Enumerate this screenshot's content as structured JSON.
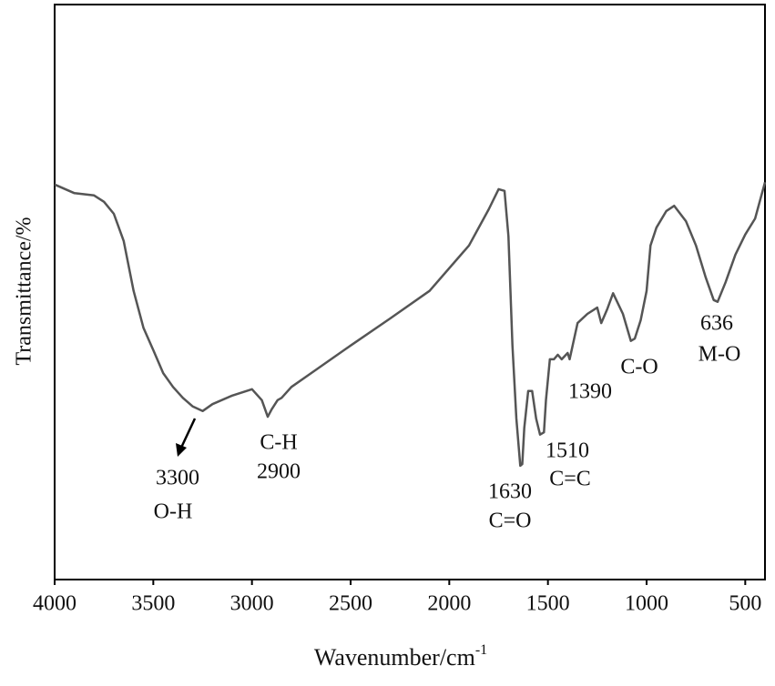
{
  "chart_data": {
    "type": "line",
    "xlabel": "Wavenumber/cm",
    "xlabel_sup": "-1",
    "ylabel": "Transmittance/%",
    "x": [
      4000,
      3900,
      3800,
      3750,
      3700,
      3650,
      3600,
      3550,
      3500,
      3450,
      3400,
      3350,
      3300,
      3250,
      3200,
      3100,
      3000,
      2950,
      2920,
      2900,
      2870,
      2850,
      2800,
      2700,
      2500,
      2300,
      2100,
      1900,
      1800,
      1750,
      1720,
      1700,
      1680,
      1660,
      1640,
      1630,
      1620,
      1600,
      1580,
      1560,
      1540,
      1520,
      1510,
      1490,
      1470,
      1450,
      1430,
      1400,
      1390,
      1350,
      1300,
      1250,
      1230,
      1200,
      1170,
      1120,
      1080,
      1060,
      1030,
      1000,
      980,
      950,
      900,
      860,
      800,
      750,
      700,
      660,
      640,
      600,
      550,
      500,
      450,
      400
    ],
    "values": [
      68.7,
      67.2,
      66.8,
      65.7,
      63.6,
      58.9,
      50.2,
      43.8,
      39.9,
      35.9,
      33.5,
      31.6,
      30.1,
      29.3,
      30.5,
      32.0,
      33.1,
      31.2,
      28.3,
      29.6,
      31.2,
      31.6,
      33.5,
      35.9,
      40.7,
      45.4,
      50.2,
      58.1,
      64.4,
      67.9,
      67.6,
      59.7,
      40.7,
      28.0,
      19.8,
      20.1,
      26.4,
      32.8,
      32.8,
      28.0,
      25.2,
      25.6,
      31.2,
      38.3,
      38.3,
      39.1,
      38.3,
      39.4,
      38.3,
      44.6,
      46.2,
      47.3,
      44.6,
      47.0,
      49.8,
      46.2,
      41.5,
      41.9,
      45.1,
      50.2,
      58.1,
      61.2,
      64.1,
      65.0,
      62.3,
      58.1,
      52.5,
      48.6,
      48.3,
      51.7,
      56.5,
      60.0,
      62.8,
      69.1
    ],
    "color": "#555555",
    "xlim": [
      4000,
      400
    ],
    "xticks": [
      4000,
      3500,
      3000,
      2500,
      2000,
      1500,
      1000,
      500
    ],
    "ylim": [
      0,
      100
    ],
    "annotations": [
      "3300",
      "O-H",
      "C-H",
      "2900",
      "1630",
      "C=O",
      "1510",
      "C=C",
      "1390",
      "C-O",
      "636",
      "M-O"
    ]
  }
}
